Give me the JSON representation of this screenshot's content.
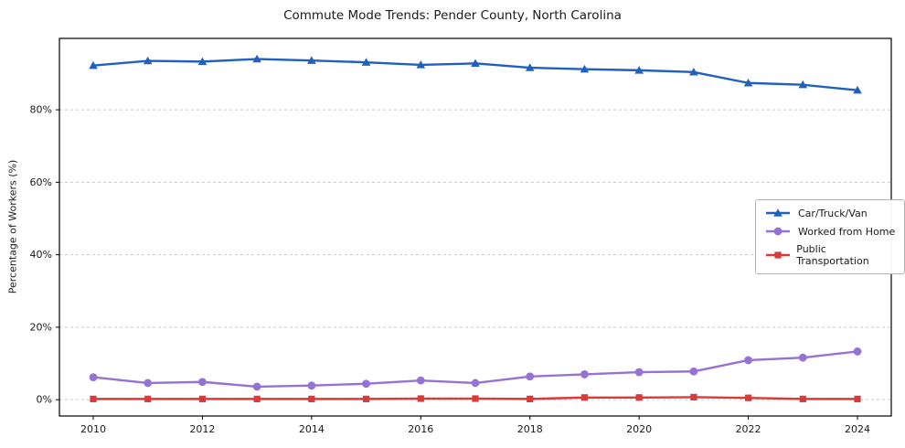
{
  "chart_data": {
    "type": "line",
    "title": "Commute Mode Trends: Pender County, North Carolina",
    "ylabel": "Percentage of Workers (%)",
    "xlabel": "",
    "x": [
      2010,
      2011,
      2012,
      2013,
      2014,
      2015,
      2016,
      2017,
      2018,
      2019,
      2020,
      2021,
      2022,
      2023,
      2024
    ],
    "xticks": {
      "values": [
        2010,
        2012,
        2014,
        2016,
        2018,
        2020,
        2022,
        2024
      ],
      "labels": [
        "2010",
        "2012",
        "2014",
        "2016",
        "2018",
        "2020",
        "2022",
        "2024"
      ]
    },
    "yticks": {
      "values": [
        0,
        20,
        40,
        60,
        80
      ],
      "labels": [
        "0%",
        "20%",
        "40%",
        "60%",
        "80%"
      ]
    },
    "ylim": [
      -4.5,
      99.7
    ],
    "grid": "horizontal-dashed",
    "grid_color": "#c9c9c9",
    "axis_color": "#000000",
    "legend_position": "center-right",
    "series": [
      {
        "name": "Car/Truck/Van",
        "color": "#2060bf",
        "marker": "triangle",
        "values": [
          92.2,
          93.5,
          93.3,
          94.0,
          93.6,
          93.1,
          92.4,
          92.8,
          91.6,
          91.2,
          90.9,
          90.4,
          87.4,
          86.9,
          85.4
        ]
      },
      {
        "name": "Worked from Home",
        "color": "#9572d4",
        "marker": "circle",
        "values": [
          6.2,
          4.6,
          4.9,
          3.6,
          3.9,
          4.4,
          5.3,
          4.6,
          6.4,
          7.0,
          7.6,
          7.8,
          10.9,
          11.6,
          13.3
        ]
      },
      {
        "name": "Public Transportation",
        "color": "#d93a3a",
        "marker": "square",
        "values": [
          0.2,
          0.2,
          0.2,
          0.2,
          0.2,
          0.2,
          0.3,
          0.3,
          0.2,
          0.6,
          0.6,
          0.7,
          0.5,
          0.2,
          0.2
        ]
      }
    ]
  }
}
